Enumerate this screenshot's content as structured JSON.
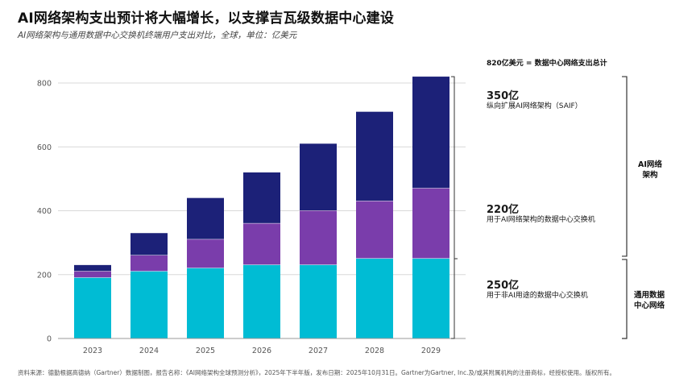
{
  "title": "AI网络架构支出预计将大幅增长，以支撑吉瓦级数据中心建设",
  "subtitle": "AI网络架构与通用数据中心交换机终端用户支出对比，全球，单位：亿美元",
  "source": "资料来源：德勤根据高德纳（Gartner）数据制图，报告名称：《AI网络架构全球预测分析》，2025年下半年版，发布日期：2025年10月31日。Gartner为Gartner, Inc.及/或其附属机构的注册商标，经授权使用。版权所有。",
  "colors": {
    "saif": "#1c2178",
    "ai_switch": "#7a3dab",
    "non_ai_switch": "#00bcd4"
  },
  "annotations": {
    "total_label": "820亿美元 = 数据中心网络支出总计",
    "segments": [
      {
        "value": "350亿",
        "desc": "纵向扩展AI网络架构（SAIF）",
        "color": "#1c2178"
      },
      {
        "value": "220亿",
        "desc": "用于AI网络架构的数据中心交换机",
        "color": "#7a3dab"
      },
      {
        "value": "250亿",
        "desc": "用于非AI用途的数据中心交换机",
        "color": "#0e9e9e"
      }
    ],
    "groups": {
      "ai_fabric_line1": "AI网络",
      "ai_fabric_line2": "架构",
      "general_line1": "通用数据",
      "general_line2": "中心网络"
    }
  },
  "chart_data": {
    "type": "bar",
    "stacked": true,
    "categories": [
      "2023",
      "2024",
      "2025",
      "2026",
      "2027",
      "2028",
      "2029"
    ],
    "series": [
      {
        "name": "用于非AI用途的数据中心交换机",
        "color": "#00bcd4",
        "values": [
          190,
          210,
          220,
          230,
          230,
          250,
          250
        ]
      },
      {
        "name": "用于AI网络架构的数据中心交换机",
        "color": "#7a3dab",
        "values": [
          20,
          50,
          90,
          130,
          170,
          180,
          220
        ]
      },
      {
        "name": "纵向扩展AI网络架构（SAIF）",
        "color": "#1c2178",
        "values": [
          20,
          70,
          130,
          160,
          210,
          280,
          350
        ]
      }
    ],
    "ylim": [
      0,
      800
    ],
    "yticks": [
      0,
      200,
      400,
      600,
      800
    ],
    "grid": true
  }
}
